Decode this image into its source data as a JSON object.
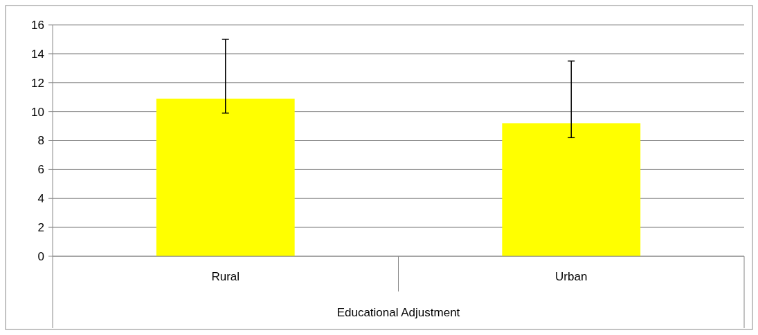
{
  "chart_data": {
    "type": "bar",
    "xlabel": "Educational Adjustment",
    "categories": [
      "Rural",
      "Urban"
    ],
    "series": [
      {
        "color": "#ffff00",
        "values": [
          10.9,
          9.2
        ],
        "errors": [
          [
            9.9,
            15.0
          ],
          [
            8.2,
            13.5
          ]
        ]
      }
    ],
    "ylim": [
      0,
      16
    ],
    "yticks": [
      0,
      2,
      4,
      6,
      8,
      10,
      12,
      14,
      16
    ],
    "grid": "y"
  }
}
